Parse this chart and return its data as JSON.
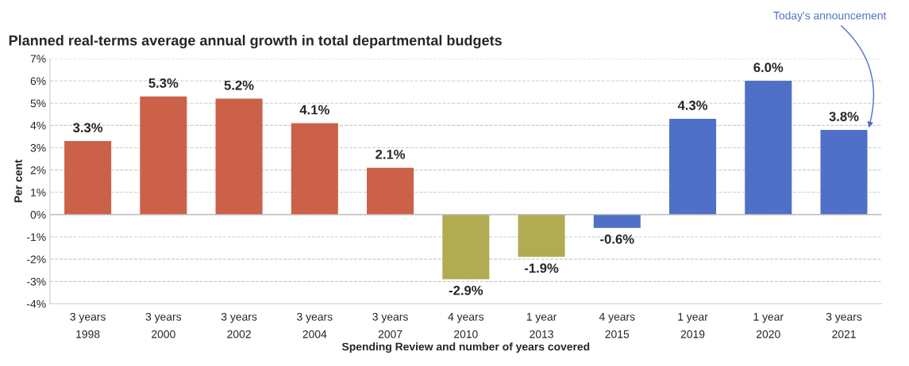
{
  "chart_data": {
    "type": "bar",
    "title": "Planned real-terms average annual growth in total departmental budgets",
    "xlabel": "Spending Review and number of years covered",
    "ylabel": "Per cent",
    "categories": [
      "3 years\n1998",
      "3 years\n2000",
      "3 years\n2002",
      "3 years\n2004",
      "3 years\n2007",
      "4 years\n2010",
      "1 year\n2013",
      "4 years\n2015",
      "1 year\n2019",
      "1 year\n2020",
      "3 years\n2021"
    ],
    "values": [
      3.3,
      5.3,
      5.2,
      4.1,
      2.1,
      -2.9,
      -1.9,
      -0.6,
      4.3,
      6.0,
      3.8
    ],
    "value_labels": [
      "3.3%",
      "5.3%",
      "5.2%",
      "4.1%",
      "2.1%",
      "-2.9%",
      "-1.9%",
      "-0.6%",
      "4.3%",
      "6.0%",
      "3.8%"
    ],
    "colors": [
      "#cc614a",
      "#cc614a",
      "#cc614a",
      "#cc614a",
      "#cc614a",
      "#b0ac52",
      "#b0ac52",
      "#4f70c6",
      "#4f70c6",
      "#4f70c6",
      "#4f70c6"
    ],
    "ylim": [
      -4,
      7
    ],
    "yticks": [
      {
        "value": -4,
        "label": "-4%"
      },
      {
        "value": -3,
        "label": "-3%"
      },
      {
        "value": -2,
        "label": "-2%"
      },
      {
        "value": -1,
        "label": "-1%"
      },
      {
        "value": 0,
        "label": "0%"
      },
      {
        "value": 1,
        "label": "1%"
      },
      {
        "value": 2,
        "label": "2%"
      },
      {
        "value": 3,
        "label": "3%"
      },
      {
        "value": 4,
        "label": "4%"
      },
      {
        "value": 5,
        "label": "5%"
      },
      {
        "value": 6,
        "label": "6%"
      },
      {
        "value": 7,
        "label": "7%"
      }
    ],
    "grid": "y",
    "annotations": [
      "Today's announcement"
    ]
  }
}
